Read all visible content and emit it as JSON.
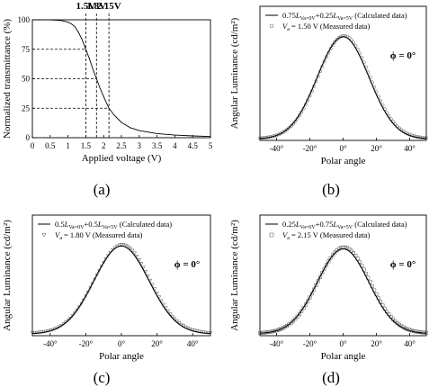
{
  "chart_data": [
    {
      "id": "a",
      "type": "line",
      "subfigure_label": "(a)",
      "xlabel": "Applied voltage (V)",
      "ylabel": "Normalized transmittance (%)",
      "xlim": [
        0,
        5
      ],
      "ylim": [
        0,
        100
      ],
      "xticks": [
        "0",
        "0.5",
        "1",
        "1.5",
        "2",
        "2.5",
        "3",
        "3.5",
        "4",
        "4.5",
        "5"
      ],
      "yticks": [
        "0",
        "25",
        "50",
        "75",
        "100"
      ],
      "grid": false,
      "series": [
        {
          "x": [
            0,
            0.5,
            0.8,
            1.0,
            1.1,
            1.2,
            1.3,
            1.4,
            1.5,
            1.6,
            1.7,
            1.8,
            1.9,
            2.0,
            2.15,
            2.3,
            2.5,
            2.75,
            3.0,
            3.5,
            4.0,
            4.5,
            5.0
          ],
          "y": [
            100,
            100,
            99.5,
            98,
            96.5,
            94,
            89,
            83,
            75,
            67,
            58,
            50,
            42,
            35,
            25,
            19,
            13,
            8.5,
            6,
            3.5,
            2.2,
            1.5,
            1.0
          ]
        }
      ],
      "annotations": [
        {
          "x": 1.5,
          "y": 75,
          "label": "1.5V"
        },
        {
          "x": 1.8,
          "y": 50,
          "label": "1.8V"
        },
        {
          "x": 2.15,
          "y": 25,
          "label": "2.15V"
        }
      ]
    },
    {
      "id": "b",
      "type": "line",
      "subfigure_label": "(b)",
      "xlabel": "Polar angle",
      "ylabel": "Angular Luminance (cd/m²)",
      "phi_label": "ϕ = 0°",
      "xlim": [
        -50,
        50
      ],
      "ylim": [
        0,
        300
      ],
      "xticks": [
        "-40°",
        "-20°",
        "0°",
        "20°",
        "40°"
      ],
      "yticks": [
        "0",
        "50",
        "100",
        "150",
        "200",
        "250",
        "300"
      ],
      "legend": {
        "position": "top-left",
        "entries": [
          {
            "kind": "line",
            "parts": [
              [
                "0.75",
                ""
              ],
              [
                "L",
                "i"
              ],
              [
                "Va=0V",
                "sub"
              ],
              [
                "+0.25",
                ""
              ],
              [
                "L",
                "i"
              ],
              [
                "Va=5V",
                "sub"
              ],
              [
                " (Calculated data)",
                ""
              ]
            ]
          },
          {
            "kind": "marker",
            "marker": "circle",
            "parts": [
              [
                "V",
                "i"
              ],
              [
                "a",
                "sub"
              ],
              [
                " = 1.50 V (Measured data)",
                ""
              ]
            ]
          }
        ]
      },
      "series": [
        {
          "kind": "calculated",
          "peak": 232,
          "center": 0,
          "sigma": 15.5,
          "baseline": 3,
          "marker": "none"
        },
        {
          "kind": "measured",
          "peak": 234,
          "center": 0.5,
          "sigma": 15.5,
          "baseline": 4,
          "marker": "circle"
        }
      ]
    },
    {
      "id": "c",
      "type": "line",
      "subfigure_label": "(c)",
      "xlabel": "Polar angle",
      "ylabel": "Angular Luminance (cd/m²)",
      "phi_label": "ϕ = 0°",
      "xlim": [
        -50,
        50
      ],
      "ylim": [
        0,
        300
      ],
      "xticks": [
        "-40°",
        "-20°",
        "0°",
        "20°",
        "40°"
      ],
      "yticks": [
        "0",
        "50",
        "100",
        "150",
        "200",
        "250",
        "300"
      ],
      "legend": {
        "position": "top-left",
        "entries": [
          {
            "kind": "line",
            "parts": [
              [
                "0.5",
                ""
              ],
              [
                "L",
                "i"
              ],
              [
                "Va=0V",
                "sub"
              ],
              [
                "+0.5",
                ""
              ],
              [
                "L",
                "i"
              ],
              [
                "Va=5V",
                "sub"
              ],
              [
                " (Calculated data)",
                ""
              ]
            ]
          },
          {
            "kind": "marker",
            "marker": "triangle",
            "parts": [
              [
                "V",
                "i"
              ],
              [
                "a",
                "sub"
              ],
              [
                " = 1.80 V (Measured data)",
                ""
              ]
            ]
          }
        ]
      },
      "series": [
        {
          "kind": "calculated",
          "peak": 223,
          "center": 0,
          "sigma": 15.5,
          "baseline": 4,
          "marker": "none"
        },
        {
          "kind": "measured",
          "peak": 227,
          "center": 0.5,
          "sigma": 15.5,
          "baseline": 6,
          "marker": "triangle"
        }
      ]
    },
    {
      "id": "d",
      "type": "line",
      "subfigure_label": "(d)",
      "xlabel": "Polar angle",
      "ylabel": "Angular Luminance (cd/m²)",
      "phi_label": "ϕ = 0°",
      "xlim": [
        -50,
        50
      ],
      "ylim": [
        0,
        300
      ],
      "xticks": [
        "-40°",
        "-20°",
        "0°",
        "20°",
        "40°"
      ],
      "yticks": [
        "0",
        "50",
        "100",
        "150",
        "200",
        "250",
        "300"
      ],
      "legend": {
        "position": "top-left",
        "entries": [
          {
            "kind": "line",
            "parts": [
              [
                "0.25",
                ""
              ],
              [
                "L",
                "i"
              ],
              [
                "Va=0V",
                "sub"
              ],
              [
                "+0.75",
                ""
              ],
              [
                "L",
                "i"
              ],
              [
                "Va=5V",
                "sub"
              ],
              [
                " (Calculated data)",
                ""
              ]
            ]
          },
          {
            "kind": "marker",
            "marker": "square",
            "parts": [
              [
                "V",
                "i"
              ],
              [
                "a",
                "sub"
              ],
              [
                " = 2.15 V (Measured data)",
                ""
              ]
            ]
          }
        ]
      },
      "series": [
        {
          "kind": "calculated",
          "peak": 216,
          "center": 0,
          "sigma": 15.5,
          "baseline": 5,
          "marker": "none"
        },
        {
          "kind": "measured",
          "peak": 220,
          "center": 0.5,
          "sigma": 15.5,
          "baseline": 6,
          "marker": "square"
        }
      ]
    }
  ]
}
